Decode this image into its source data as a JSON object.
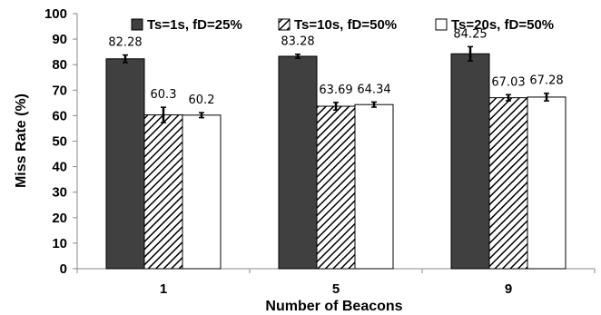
{
  "chart_data": {
    "type": "bar",
    "xlabel": "Number of Beacons",
    "ylabel": "Miss Rate (%)",
    "categories": [
      "1",
      "5",
      "9"
    ],
    "ylim": [
      0,
      100
    ],
    "yticks": [
      "0",
      "10",
      "20",
      "30",
      "40",
      "50",
      "60",
      "70",
      "80",
      "90",
      "100"
    ],
    "grid": false,
    "legend_position": "top",
    "series": [
      {
        "name": "Ts=1s, fD=25%",
        "values": [
          82.28,
          83.28,
          84.25
        ],
        "labels": [
          "82.28",
          "83.28",
          "84.25"
        ],
        "error": [
          1.5,
          0.8,
          2.8
        ],
        "fill": "#404040",
        "pattern": "solid"
      },
      {
        "name": "Ts=10s, fD=50%",
        "values": [
          60.3,
          63.69,
          67.03
        ],
        "labels": [
          "60.3",
          "63.69",
          "67.03"
        ],
        "error": [
          3.0,
          1.5,
          1.2
        ],
        "fill": "#ffffff",
        "pattern": "diagonal-hatch"
      },
      {
        "name": "Ts=20s, fD=50%",
        "values": [
          60.2,
          64.34,
          67.28
        ],
        "labels": [
          "60.2",
          "64.34",
          "67.28"
        ],
        "error": [
          1.0,
          1.0,
          1.5
        ],
        "fill": "#ffffff",
        "pattern": "none"
      }
    ]
  }
}
